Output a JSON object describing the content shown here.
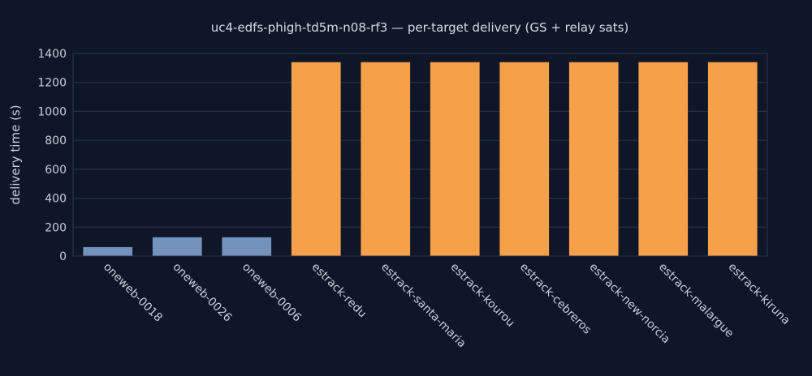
{
  "chart_data": {
    "type": "bar",
    "title": "uc4-edfs-phigh-td5m-n08-rf3 — per-target delivery (GS + relay sats)",
    "xlabel": "",
    "ylabel": "delivery time (s)",
    "ylim": [
      0,
      1400
    ],
    "yticks": [
      0,
      200,
      400,
      600,
      800,
      1000,
      1200,
      1400
    ],
    "grid": true,
    "categories": [
      "oneweb-0018",
      "oneweb-0026",
      "oneweb-0006",
      "estrack-redu",
      "estrack-santa-maria",
      "estrack-kourou",
      "estrack-cebreros",
      "estrack-new-norcia",
      "estrack-malargue",
      "estrack-kiruna"
    ],
    "values": [
      62,
      130,
      130,
      1340,
      1340,
      1340,
      1340,
      1340,
      1340,
      1340
    ],
    "bar_colors": [
      "#7393bd",
      "#7393bd",
      "#7393bd",
      "#f7a04a",
      "#f7a04a",
      "#f7a04a",
      "#f7a04a",
      "#f7a04a",
      "#f7a04a",
      "#f7a04a"
    ]
  },
  "colors": {
    "background": "#0e1628",
    "grid": "#2b3650",
    "text": "#c8cfdc"
  }
}
